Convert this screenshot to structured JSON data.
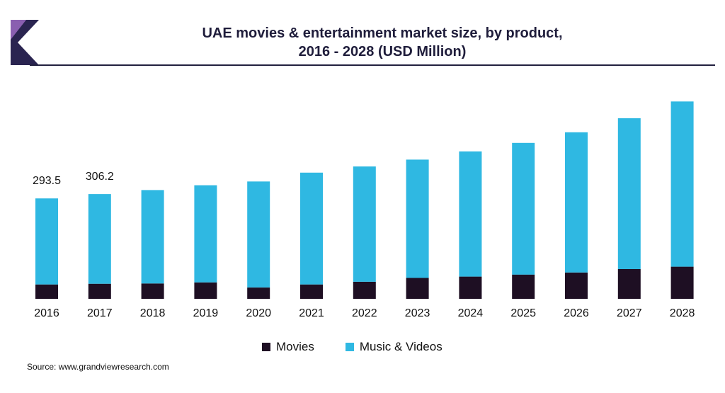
{
  "header": {
    "title_line1": "UAE movies & entertainment market size, by product,",
    "title_line2": "2016 - 2028 (USD Million)"
  },
  "source": "Source: www.grandviewresearch.com",
  "colors": {
    "movies": "#1e0f23",
    "music_videos": "#2fb8e2",
    "logo_dark": "#2a2450",
    "logo_accent": "#8a5fb0"
  },
  "chart_data": {
    "type": "bar",
    "stacked": true,
    "categories": [
      "2016",
      "2017",
      "2018",
      "2019",
      "2020",
      "2021",
      "2022",
      "2023",
      "2024",
      "2025",
      "2026",
      "2027",
      "2028"
    ],
    "series": [
      {
        "name": "Movies",
        "values": [
          42,
          44,
          45,
          48,
          33,
          42,
          50,
          61,
          65,
          71,
          77,
          87,
          94
        ]
      },
      {
        "name": "Music & Videos",
        "values": [
          251.5,
          262.2,
          273,
          284,
          310,
          327,
          337,
          346,
          366,
          385,
          410,
          441,
          483
        ]
      }
    ],
    "data_labels": [
      {
        "category": "2016",
        "text": "293.5"
      },
      {
        "category": "2017",
        "text": "306.2"
      }
    ],
    "ylim": [
      0,
      600
    ],
    "grid": false,
    "legend": "bottom",
    "xlabel": "",
    "ylabel": ""
  }
}
